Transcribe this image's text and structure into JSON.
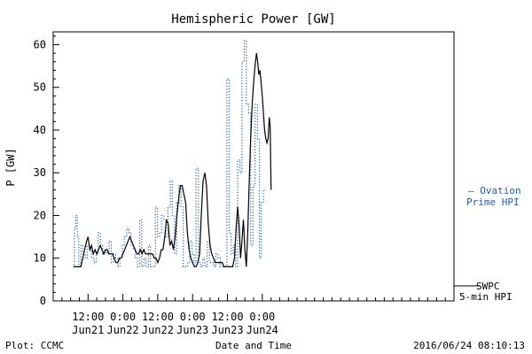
{
  "chart_data": {
    "type": "line",
    "title": "Hemispheric Power [GW]",
    "xlabel": "Date and Time",
    "ylabel": "P [GW]",
    "ylim": [
      0,
      63
    ],
    "y_ticks": [
      0,
      10,
      20,
      30,
      40,
      50,
      60
    ],
    "x_domain_hours": [
      -12,
      126
    ],
    "x_ticks": [
      {
        "hours": 0,
        "line1": "12:00",
        "line2": "Jun21"
      },
      {
        "hours": 12,
        "line1": "0:00",
        "line2": "Jun22"
      },
      {
        "hours": 24,
        "line1": "12:00",
        "line2": "Jun22"
      },
      {
        "hours": 36,
        "line1": "0:00",
        "line2": "Jun23"
      },
      {
        "hours": 48,
        "line1": "12:00",
        "line2": "Jun23"
      },
      {
        "hours": 60,
        "line1": "0:00",
        "line2": "Jun24"
      }
    ],
    "series": [
      {
        "name": "Ovation Prime HPI",
        "label_line1": "– Ovation",
        "label_line2": "Prime HPI",
        "style": "dotted-step",
        "color": "#1f5fb0",
        "points": [
          [
            -5,
            8
          ],
          [
            -4.7,
            17
          ],
          [
            -4.2,
            20
          ],
          [
            -3.7,
            15
          ],
          [
            -3.2,
            8
          ],
          [
            -2.5,
            13
          ],
          [
            -1.8,
            11
          ],
          [
            -1,
            10
          ],
          [
            -0.3,
            13
          ],
          [
            0.5,
            12
          ],
          [
            1.2,
            10
          ],
          [
            2,
            9
          ],
          [
            2.8,
            11
          ],
          [
            3.5,
            16
          ],
          [
            4.2,
            13
          ],
          [
            5,
            11
          ],
          [
            5.8,
            12
          ],
          [
            6.5,
            11
          ],
          [
            7.2,
            14
          ],
          [
            8,
            9
          ],
          [
            8.7,
            11
          ],
          [
            9.5,
            10
          ],
          [
            10.3,
            8
          ],
          [
            11,
            10
          ],
          [
            11.8,
            13
          ],
          [
            12.5,
            15
          ],
          [
            13.3,
            17
          ],
          [
            14,
            16
          ],
          [
            14.8,
            13
          ],
          [
            15.5,
            12
          ],
          [
            16.3,
            10
          ],
          [
            17,
            8
          ],
          [
            17.8,
            19
          ],
          [
            18.5,
            8
          ],
          [
            19.3,
            10
          ],
          [
            20,
            8
          ],
          [
            20.8,
            13
          ],
          [
            21.5,
            8
          ],
          [
            22.3,
            8
          ],
          [
            23.2,
            22
          ],
          [
            23.9,
            15
          ],
          [
            24.6,
            16
          ],
          [
            25.3,
            20
          ],
          [
            26.1,
            19
          ],
          [
            26.8,
            15
          ],
          [
            27.5,
            22
          ],
          [
            28.3,
            28
          ],
          [
            29,
            20
          ],
          [
            29.8,
            11
          ],
          [
            30.5,
            23
          ],
          [
            31.3,
            27
          ],
          [
            32,
            22
          ],
          [
            32.8,
            8
          ],
          [
            33.5,
            8
          ],
          [
            34.3,
            9
          ],
          [
            35,
            14
          ],
          [
            35.8,
            11
          ],
          [
            36.5,
            9
          ],
          [
            37.2,
            31
          ],
          [
            38,
            9
          ],
          [
            38.7,
            8
          ],
          [
            39.5,
            10
          ],
          [
            40.2,
            8
          ],
          [
            41,
            14
          ],
          [
            41.8,
            9
          ],
          [
            42.5,
            9
          ],
          [
            43.3,
            8
          ],
          [
            44,
            11
          ],
          [
            44.8,
            10
          ],
          [
            45.5,
            8
          ],
          [
            46.3,
            8
          ],
          [
            47,
            8
          ],
          [
            47.8,
            52
          ],
          [
            48.6,
            16
          ],
          [
            49.3,
            11
          ],
          [
            50,
            13
          ],
          [
            50.8,
            8
          ],
          [
            51.5,
            33
          ],
          [
            52.3,
            30
          ],
          [
            53,
            56
          ],
          [
            53.8,
            61
          ],
          [
            54.5,
            46
          ],
          [
            55.3,
            44
          ],
          [
            56,
            13
          ],
          [
            56.8,
            27
          ],
          [
            57.5,
            46
          ],
          [
            58.3,
            38
          ],
          [
            59,
            10
          ],
          [
            59.6,
            23
          ],
          [
            60.4,
            26
          ]
        ]
      },
      {
        "name": "SWPC 5-min HPI",
        "label_line1": "SWPC",
        "label_line2": "5-min HPI",
        "style": "solid",
        "color": "#000000",
        "points": [
          [
            -5,
            8
          ],
          [
            -3.5,
            8
          ],
          [
            -2.5,
            8
          ],
          [
            -1.5,
            11
          ],
          [
            -0.5,
            14
          ],
          [
            0,
            15
          ],
          [
            0.6,
            12
          ],
          [
            1.2,
            13
          ],
          [
            1.8,
            11
          ],
          [
            2.4,
            12
          ],
          [
            3,
            11
          ],
          [
            3.6,
            12
          ],
          [
            4.2,
            13
          ],
          [
            4.8,
            12
          ],
          [
            5.4,
            11
          ],
          [
            6,
            12
          ],
          [
            6.6,
            12
          ],
          [
            7.2,
            11
          ],
          [
            7.8,
            11
          ],
          [
            8.4,
            11
          ],
          [
            9,
            10
          ],
          [
            9.6,
            9
          ],
          [
            10.2,
            9
          ],
          [
            10.8,
            10
          ],
          [
            11.4,
            10
          ],
          [
            12,
            11
          ],
          [
            12.6,
            12
          ],
          [
            13.2,
            13
          ],
          [
            13.8,
            14
          ],
          [
            14.4,
            15
          ],
          [
            15,
            14
          ],
          [
            15.6,
            13
          ],
          [
            16.2,
            12
          ],
          [
            16.8,
            11
          ],
          [
            17.4,
            11
          ],
          [
            18,
            12
          ],
          [
            18.6,
            11
          ],
          [
            19.2,
            12
          ],
          [
            19.8,
            11
          ],
          [
            20.4,
            11
          ],
          [
            21,
            11
          ],
          [
            21.6,
            11
          ],
          [
            22.2,
            11
          ],
          [
            22.8,
            10
          ],
          [
            23.4,
            10
          ],
          [
            24,
            9
          ],
          [
            24.6,
            10
          ],
          [
            25.2,
            12
          ],
          [
            25.8,
            12
          ],
          [
            26.4,
            15
          ],
          [
            27,
            19
          ],
          [
            27.6,
            18
          ],
          [
            28.2,
            13
          ],
          [
            28.8,
            14
          ],
          [
            29.4,
            12
          ],
          [
            30,
            15
          ],
          [
            30.6,
            20
          ],
          [
            31.2,
            24
          ],
          [
            31.8,
            27
          ],
          [
            32.4,
            27
          ],
          [
            33,
            25
          ],
          [
            33.6,
            23
          ],
          [
            34.2,
            16
          ],
          [
            34.8,
            12
          ],
          [
            35.4,
            10
          ],
          [
            36,
            9
          ],
          [
            36.6,
            8
          ],
          [
            37.2,
            8
          ],
          [
            37.8,
            9
          ],
          [
            38.4,
            11
          ],
          [
            39,
            20
          ],
          [
            39.6,
            28
          ],
          [
            40.2,
            30
          ],
          [
            40.8,
            27
          ],
          [
            41.4,
            18
          ],
          [
            42,
            13
          ],
          [
            42.6,
            11
          ],
          [
            43.2,
            10
          ],
          [
            43.8,
            9
          ],
          [
            44.4,
            9
          ],
          [
            45,
            9
          ],
          [
            45.6,
            9
          ],
          [
            46.2,
            9
          ],
          [
            46.8,
            8
          ],
          [
            47.4,
            8
          ],
          [
            48,
            8
          ],
          [
            48.6,
            8
          ],
          [
            49.2,
            8
          ],
          [
            49.8,
            8
          ],
          [
            50.4,
            10
          ],
          [
            51,
            17
          ],
          [
            51.5,
            22
          ],
          [
            52,
            18
          ],
          [
            52.5,
            10
          ],
          [
            53,
            14
          ],
          [
            53.5,
            19
          ],
          [
            54,
            12
          ],
          [
            54.5,
            8
          ],
          [
            55,
            16
          ],
          [
            55.5,
            28
          ],
          [
            56,
            38
          ],
          [
            56.5,
            46
          ],
          [
            57,
            51
          ],
          [
            57.5,
            55
          ],
          [
            58,
            58
          ],
          [
            58.4,
            56
          ],
          [
            58.8,
            53
          ],
          [
            59.2,
            54
          ],
          [
            59.6,
            51
          ],
          [
            60,
            48
          ],
          [
            60.4,
            44
          ],
          [
            60.8,
            40
          ],
          [
            61.2,
            38
          ],
          [
            61.6,
            37
          ],
          [
            62,
            38
          ],
          [
            62.4,
            43
          ],
          [
            62.7,
            41
          ],
          [
            63,
            26
          ]
        ]
      }
    ],
    "legend_placement": "right"
  },
  "footer": {
    "plot_credit": "Plot: CCMC",
    "timestamp": "2016/06/24 08:10:13"
  }
}
